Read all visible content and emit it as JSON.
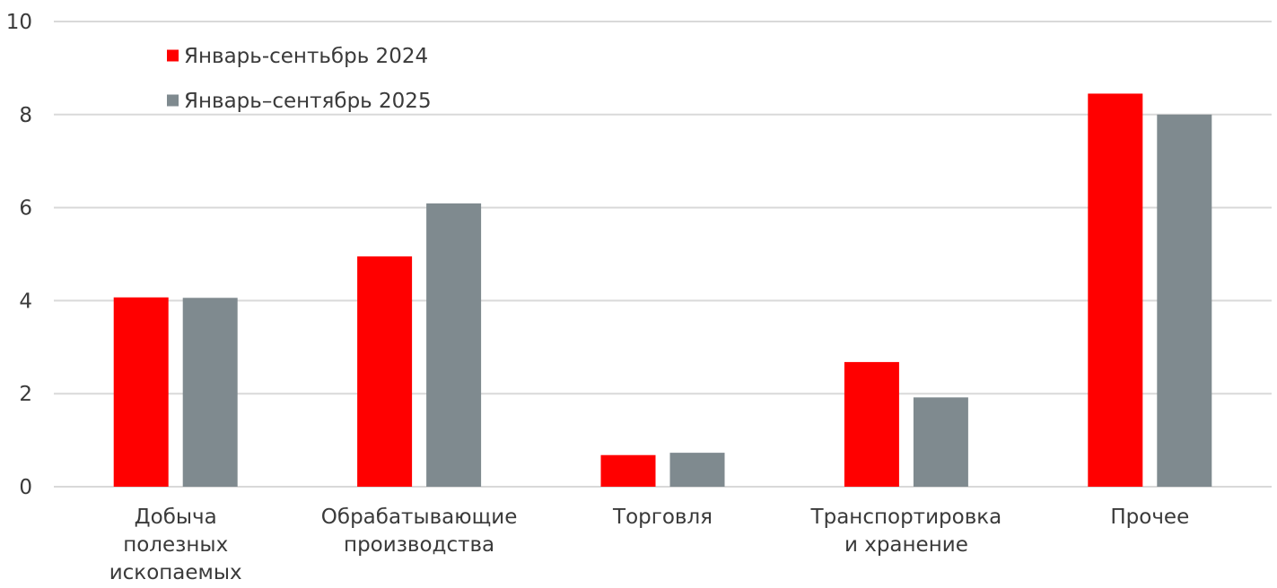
{
  "chart_data": {
    "type": "bar",
    "title": "",
    "xlabel": "",
    "ylabel": "",
    "ylim": [
      0,
      10
    ],
    "yticks": [
      "0",
      "2",
      "4",
      "6",
      "8",
      "10"
    ],
    "grid": true,
    "legend_position": "top-left",
    "categories": [
      [
        "Добыча",
        "полезных",
        "ископаемых"
      ],
      [
        "Обрабатывающие",
        "производства"
      ],
      [
        "Торговля"
      ],
      [
        "Транспортировка",
        "и хранение"
      ],
      [
        "Прочее"
      ]
    ],
    "series": [
      {
        "name": "Январь-сентьбрь 2024",
        "color": "#ff0000",
        "values": [
          4.07,
          4.95,
          0.68,
          2.68,
          8.45
        ]
      },
      {
        "name": "Январь–сентябрь 2025",
        "color": "#7f8a8f",
        "values": [
          4.06,
          6.09,
          0.73,
          1.92,
          8.0
        ]
      }
    ]
  }
}
